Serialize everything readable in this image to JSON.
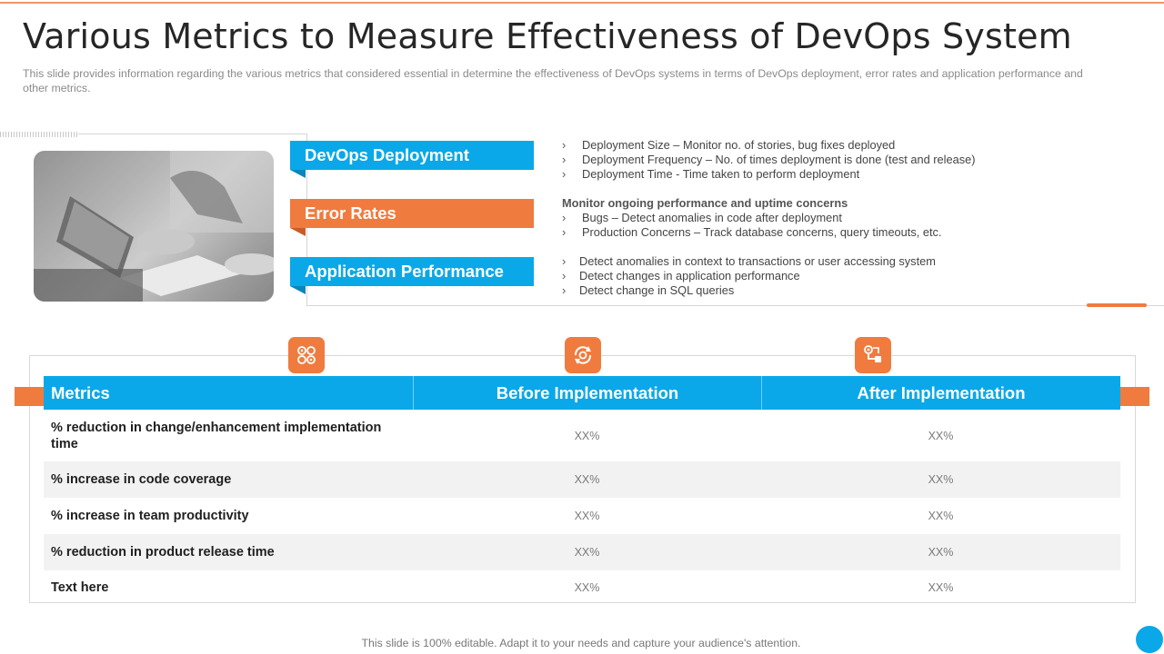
{
  "header": {
    "title": "Various Metrics to Measure Effectiveness of DevOps System",
    "subtitle": "This slide provides information regarding the various metrics that considered essential in determine the effectiveness of DevOps systems in terms of DevOps deployment, error rates and application performance and other metrics."
  },
  "categories": [
    {
      "label": "DevOps Deployment",
      "color": "#0aa8e8",
      "heading": "",
      "bullets": [
        "Deployment Size – Monitor no. of stories, bug fixes deployed",
        "Deployment Frequency – No. of times deployment is done (test and release)",
        "Deployment Time - Time taken to perform deployment"
      ]
    },
    {
      "label": "Error Rates",
      "color": "#f07b3f",
      "heading": "Monitor ongoing performance and uptime concerns",
      "bullets": [
        "Bugs – Detect anomalies in code after deployment",
        "Production Concerns – Track database concerns, query timeouts, etc."
      ]
    },
    {
      "label": "Application Performance",
      "color": "#0aa8e8",
      "heading": "",
      "bullets": [
        "Detect anomalies in context to transactions or user accessing system",
        "Detect changes in application performance",
        "Detect change in SQL queries"
      ]
    }
  ],
  "bullet_glyph": "›",
  "icons": [
    "grid-apps-icon",
    "cycle-refresh-icon",
    "workflow-gear-icon"
  ],
  "table": {
    "headers": [
      "Metrics",
      "Before Implementation",
      "After Implementation"
    ],
    "rows": [
      {
        "metric": "% reduction in change/enhancement implementation time",
        "before": "XX%",
        "after": "XX%"
      },
      {
        "metric": "% increase in code coverage",
        "before": "XX%",
        "after": "XX%"
      },
      {
        "metric": "% increase in team productivity",
        "before": "XX%",
        "after": "XX%"
      },
      {
        "metric": "% reduction in product release time",
        "before": "XX%",
        "after": "XX%"
      },
      {
        "metric": "Text here",
        "before": "XX%",
        "after": "XX%"
      }
    ]
  },
  "footer": "This slide is 100% editable. Adapt it to your needs and capture your audience's attention.",
  "colors": {
    "accent_orange": "#f07b3f",
    "accent_blue": "#0aa8e8"
  }
}
